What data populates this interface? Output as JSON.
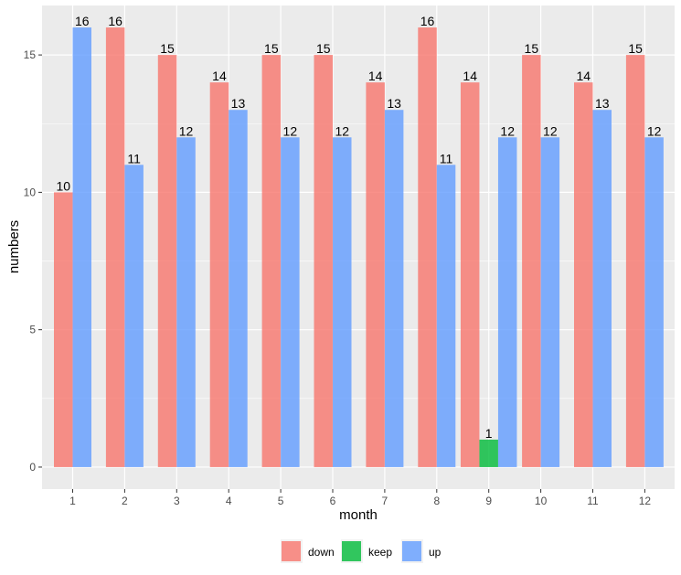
{
  "chart_data": {
    "type": "bar",
    "categories": [
      "1",
      "2",
      "3",
      "4",
      "5",
      "6",
      "7",
      "8",
      "9",
      "10",
      "11",
      "12"
    ],
    "series": [
      {
        "name": "down",
        "color": "#F8766D",
        "values": [
          10,
          16,
          15,
          14,
          15,
          15,
          14,
          16,
          14,
          15,
          14,
          15
        ]
      },
      {
        "name": "keep",
        "color": "#00BA38",
        "values": [
          null,
          null,
          null,
          null,
          null,
          null,
          null,
          null,
          1,
          null,
          null,
          null
        ]
      },
      {
        "name": "up",
        "color": "#619CFF",
        "values": [
          16,
          11,
          12,
          13,
          12,
          12,
          13,
          11,
          12,
          12,
          13,
          12
        ]
      }
    ],
    "title": "",
    "xlabel": "month",
    "ylabel": "numbers",
    "ylim": [
      -0.8,
      16.8
    ],
    "yticks": [
      0,
      5,
      10,
      15
    ],
    "grid": true,
    "legend_position": "bottom"
  }
}
